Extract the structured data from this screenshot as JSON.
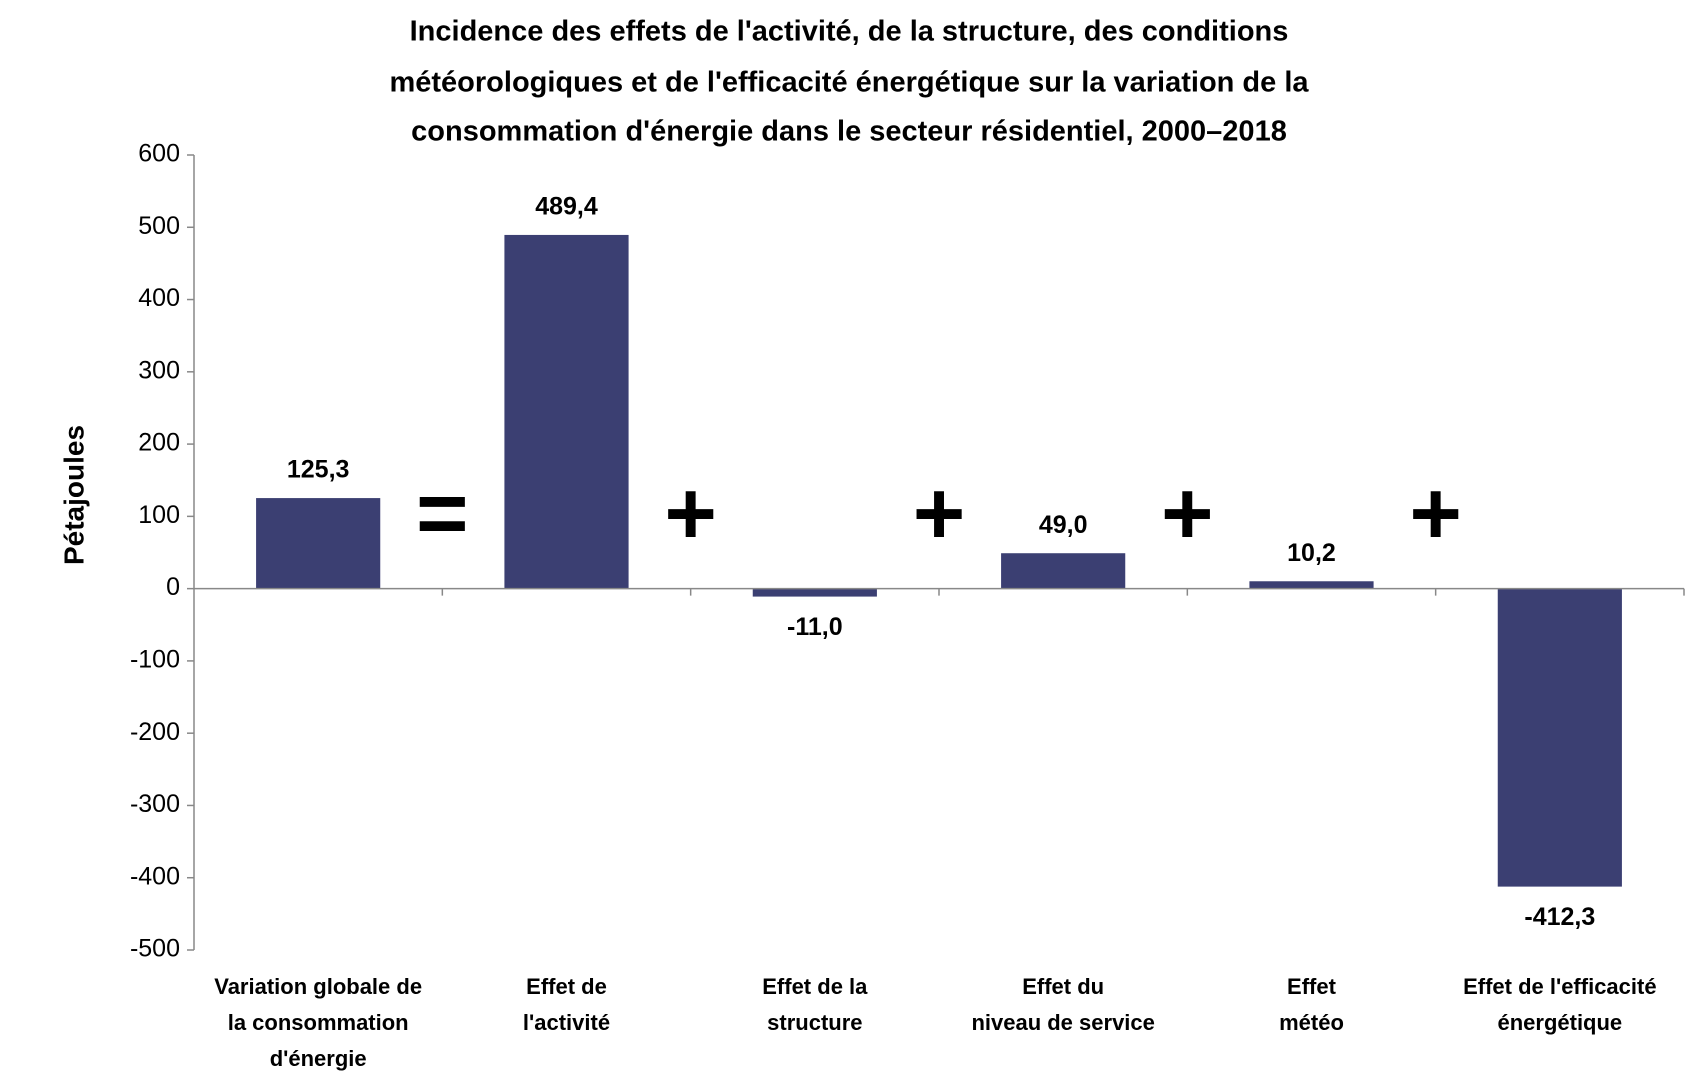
{
  "chart_data": {
    "type": "bar",
    "title": [
      "Incidence des effets de l'activité, de la structure, des conditions",
      "météorologiques et de l'efficacité énergétique sur la variation de la",
      "consommation d'énergie dans le secteur résidentiel, 2000–2018"
    ],
    "y_label": "Pétajoules",
    "categories": [
      [
        "Variation globale de",
        "la consommation",
        "d'énergie"
      ],
      [
        "Effet de",
        "l'activité"
      ],
      [
        "Effet de la",
        "structure"
      ],
      [
        "Effet du",
        "niveau de service"
      ],
      [
        "Effet",
        "météo"
      ],
      [
        "Effet de l'efficacité",
        "énergétique"
      ]
    ],
    "values": [
      125.3,
      489.4,
      -11.0,
      49.0,
      10.2,
      -412.3
    ],
    "value_labels": [
      "125,3",
      "489,4",
      "-11,0",
      "49,0",
      "10,2",
      "-412,3"
    ],
    "operators": [
      "=",
      "+",
      "+",
      "+",
      "+"
    ],
    "operator_color": "#7cb342",
    "color": "#3b3f72",
    "ylim": [
      -500,
      600
    ],
    "yticks": [
      -500,
      -400,
      -300,
      -200,
      -100,
      0,
      100,
      200,
      300,
      400,
      500,
      600
    ],
    "grid": false
  }
}
